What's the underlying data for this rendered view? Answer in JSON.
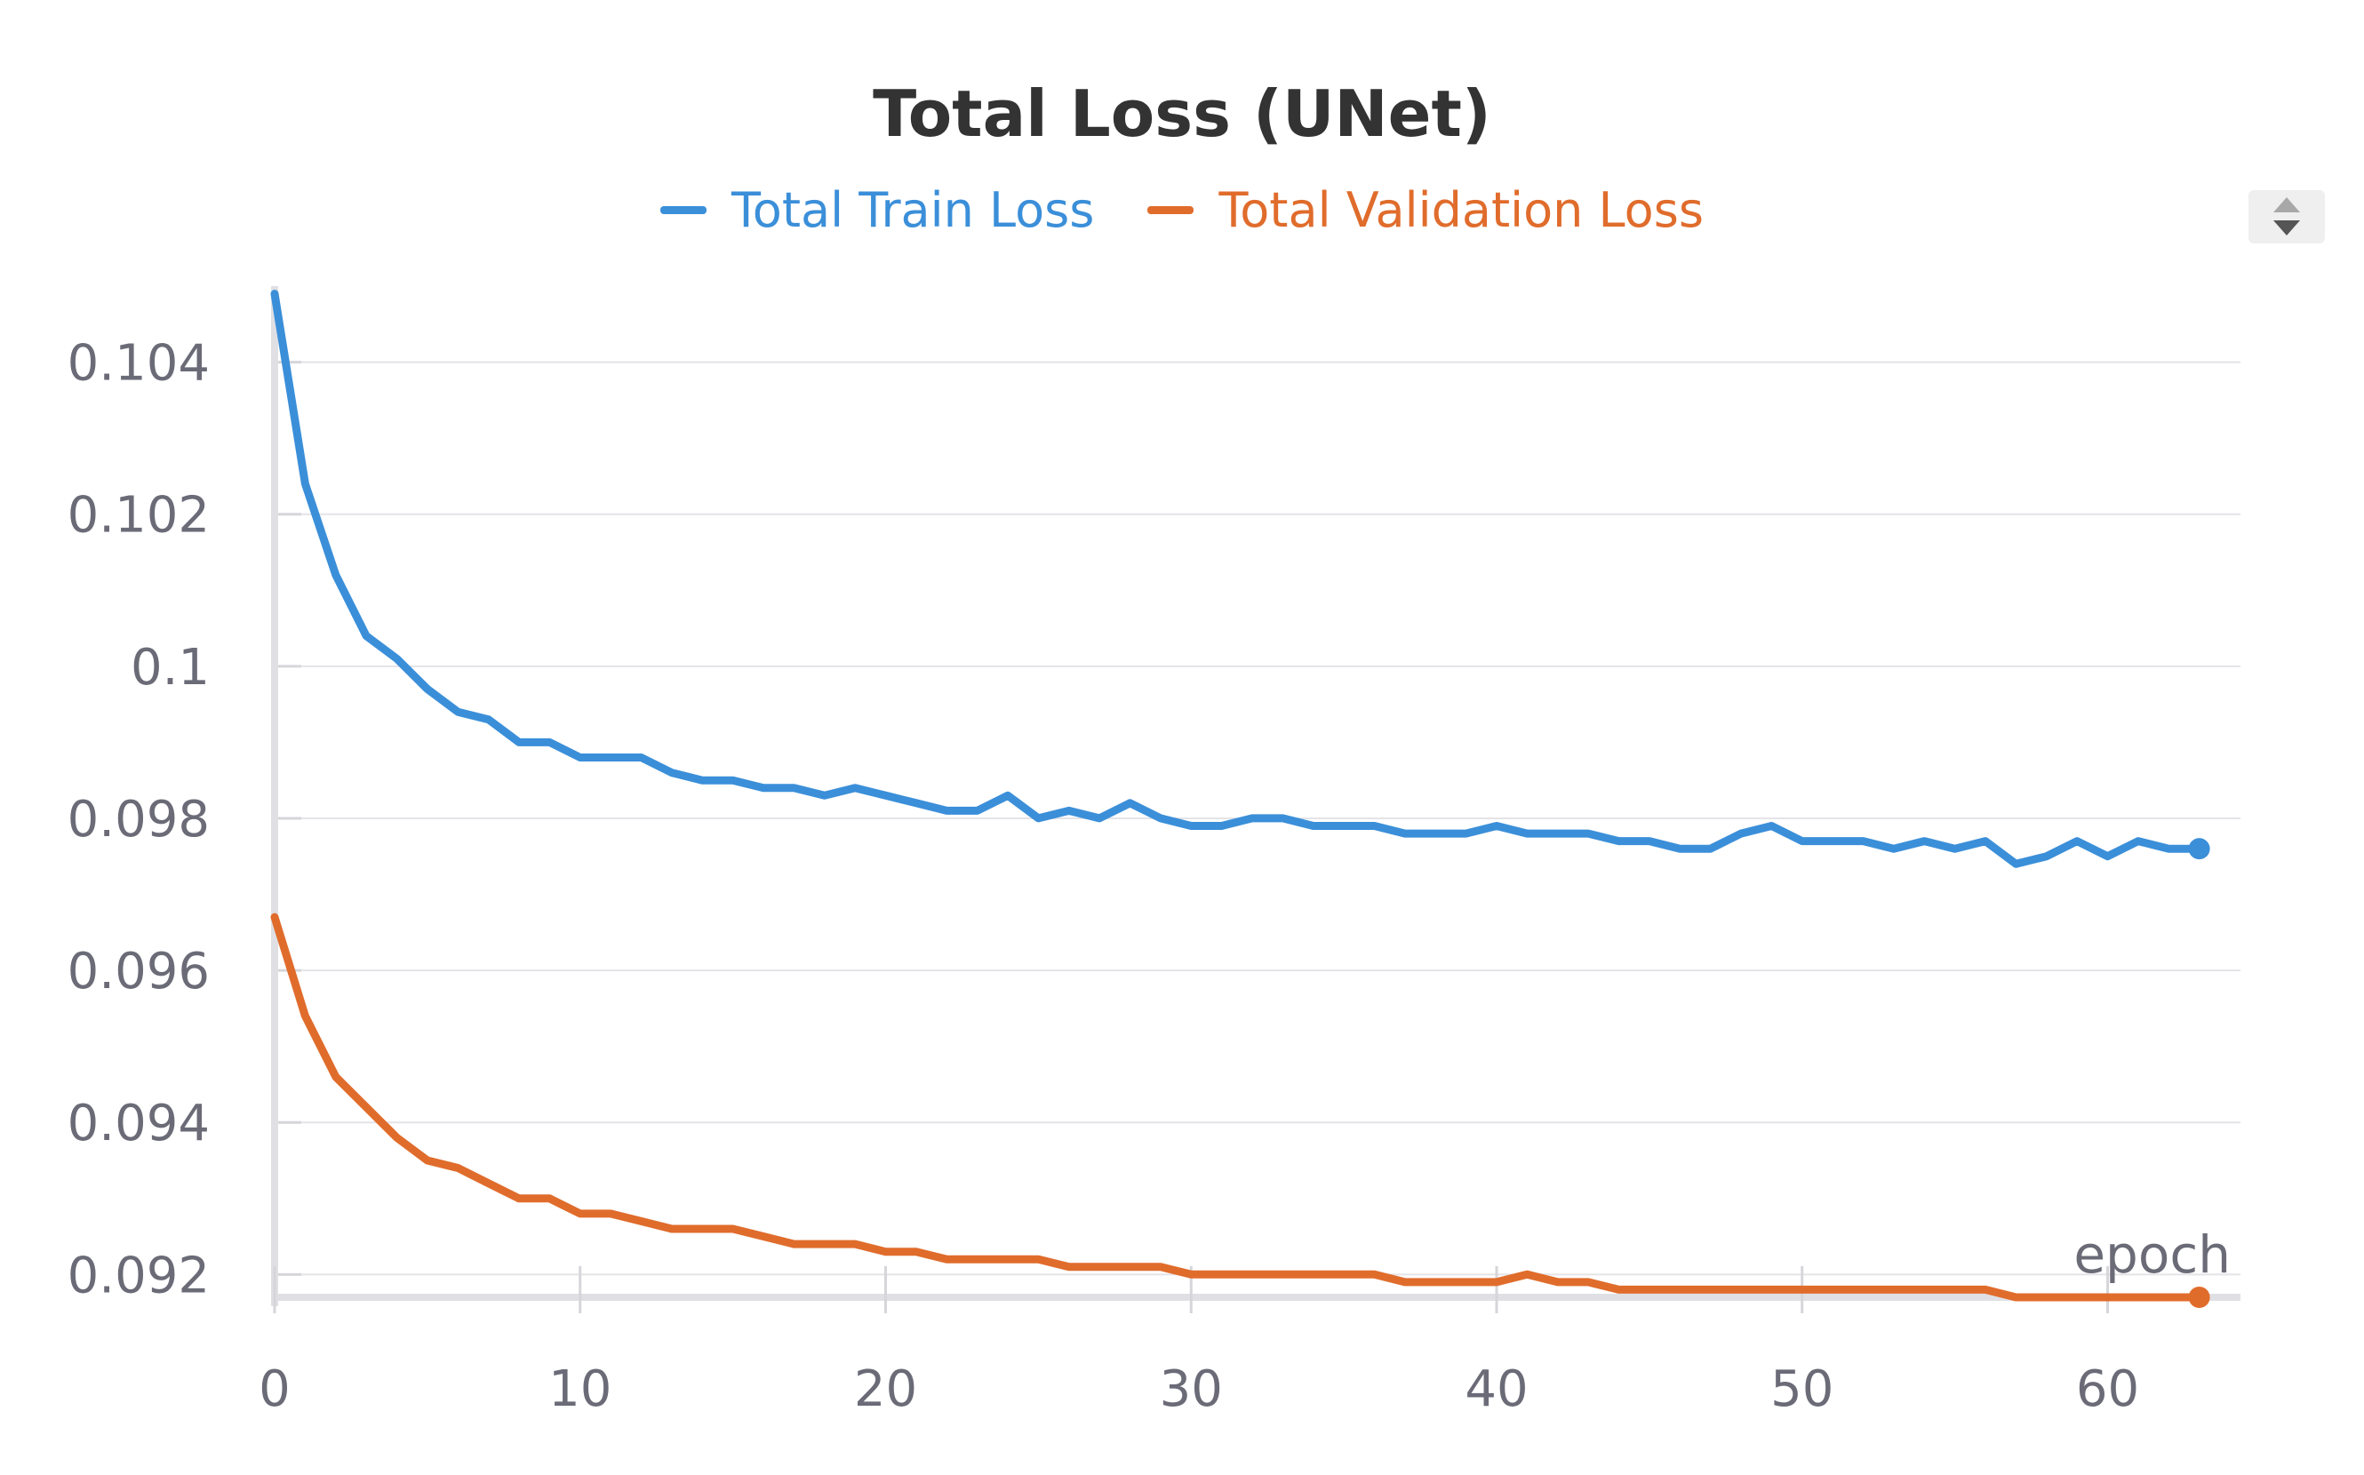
{
  "chart_data": {
    "type": "line",
    "title": "Total Loss (UNet)",
    "xlabel": "epoch",
    "ylabel": "",
    "xlim": [
      0,
      64
    ],
    "ylim": [
      0.0917,
      0.105
    ],
    "x_ticks": [
      0,
      10,
      20,
      30,
      40,
      50,
      60
    ],
    "y_ticks": [
      0.092,
      0.094,
      0.096,
      0.098,
      0.1,
      0.102,
      0.104
    ],
    "y_tick_labels": [
      "0.092",
      "0.094",
      "0.096",
      "0.098",
      "0.1",
      "0.102",
      "0.104"
    ],
    "x_tick_labels": [
      "0",
      "10",
      "20",
      "30",
      "40",
      "50",
      "60"
    ],
    "grid": true,
    "legend_position": "top-center",
    "x": [
      0,
      1,
      2,
      3,
      4,
      5,
      6,
      7,
      8,
      9,
      10,
      11,
      12,
      13,
      14,
      15,
      16,
      17,
      18,
      19,
      20,
      21,
      22,
      23,
      24,
      25,
      26,
      27,
      28,
      29,
      30,
      31,
      32,
      33,
      34,
      35,
      36,
      37,
      38,
      39,
      40,
      41,
      42,
      43,
      44,
      45,
      46,
      47,
      48,
      49,
      50,
      51,
      52,
      53,
      54,
      55,
      56,
      57,
      58,
      59,
      60,
      61,
      62,
      63
    ],
    "series": [
      {
        "name": "Total Train Loss",
        "color": "#3b8fd9",
        "values": [
          0.1049,
          0.1024,
          0.1012,
          0.1004,
          0.1001,
          0.0997,
          0.0994,
          0.0993,
          0.099,
          0.099,
          0.0988,
          0.0988,
          0.0988,
          0.0986,
          0.0985,
          0.0985,
          0.0984,
          0.0984,
          0.0983,
          0.0984,
          0.0983,
          0.0982,
          0.0981,
          0.0981,
          0.0983,
          0.098,
          0.0981,
          0.098,
          0.0982,
          0.098,
          0.0979,
          0.0979,
          0.098,
          0.098,
          0.0979,
          0.0979,
          0.0979,
          0.0978,
          0.0978,
          0.0978,
          0.0979,
          0.0978,
          0.0978,
          0.0978,
          0.0977,
          0.0977,
          0.0976,
          0.0976,
          0.0978,
          0.0979,
          0.0977,
          0.0977,
          0.0977,
          0.0976,
          0.0977,
          0.0976,
          0.0977,
          0.0974,
          0.0975,
          0.0977,
          0.0975,
          0.0977,
          0.0976,
          0.0976
        ]
      },
      {
        "name": "Total Validation Loss",
        "color": "#e06c2c",
        "values": [
          0.0967,
          0.0954,
          0.0946,
          0.0942,
          0.0938,
          0.0935,
          0.0934,
          0.0932,
          0.093,
          0.093,
          0.0928,
          0.0928,
          0.0927,
          0.0926,
          0.0926,
          0.0926,
          0.0925,
          0.0924,
          0.0924,
          0.0924,
          0.0923,
          0.0923,
          0.0922,
          0.0922,
          0.0922,
          0.0922,
          0.0921,
          0.0921,
          0.0921,
          0.0921,
          0.092,
          0.092,
          0.092,
          0.092,
          0.092,
          0.092,
          0.092,
          0.0919,
          0.0919,
          0.0919,
          0.0919,
          0.092,
          0.0919,
          0.0919,
          0.0918,
          0.0918,
          0.0918,
          0.0918,
          0.0918,
          0.0918,
          0.0918,
          0.0918,
          0.0918,
          0.0918,
          0.0918,
          0.0918,
          0.0918,
          0.0917,
          0.0917,
          0.0917,
          0.0917,
          0.0917,
          0.0917,
          0.0917
        ]
      }
    ]
  }
}
